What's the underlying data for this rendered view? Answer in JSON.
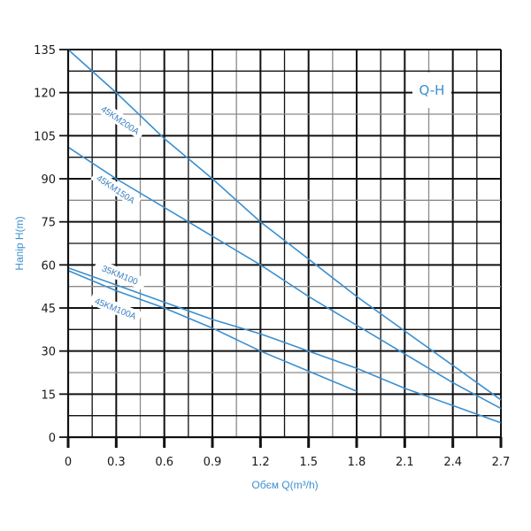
{
  "chart_data": {
    "type": "line",
    "title": "Q-H",
    "xlabel": "Обєм Q(m³/h)",
    "ylabel": "Напір H(m)",
    "xlim": [
      0,
      2.7
    ],
    "ylim": [
      0,
      135
    ],
    "x_ticks": [
      "0",
      "0.3",
      "0.6",
      "0.9",
      "1.2",
      "1.5",
      "1.8",
      "2.1",
      "2.4",
      "2.7"
    ],
    "y_ticks": [
      "0",
      "15",
      "30",
      "45",
      "60",
      "75",
      "90",
      "105",
      "120",
      "135"
    ],
    "grid": true,
    "series": [
      {
        "name": "45KM200A",
        "x": [
          0,
          0.3,
          0.6,
          0.9,
          1.2,
          1.5,
          1.8,
          2.1,
          2.4,
          2.7
        ],
        "values": [
          135,
          120,
          104,
          90,
          75,
          62,
          49,
          37,
          25,
          13
        ]
      },
      {
        "name": "45KM150A",
        "x": [
          0,
          0.3,
          0.6,
          0.9,
          1.2,
          1.5,
          1.8,
          2.1,
          2.4,
          2.7
        ],
        "values": [
          101,
          90,
          80,
          70,
          60,
          49,
          39,
          29,
          19,
          10
        ]
      },
      {
        "name": "35KM100",
        "x": [
          0,
          0.3,
          0.6,
          0.9,
          1.2,
          1.5,
          1.8,
          2.1,
          2.4,
          2.7
        ],
        "values": [
          59,
          53,
          47,
          41,
          36,
          30,
          24,
          17,
          11,
          5
        ]
      },
      {
        "name": "45KM100A",
        "x": [
          0,
          0.3,
          0.6,
          0.9,
          1.2,
          1.5,
          1.8
        ],
        "values": [
          58,
          51,
          45,
          38,
          30,
          23,
          16
        ]
      }
    ],
    "colors": {
      "curve": "#3a8fd0",
      "grid": "#111111",
      "label": "#3a8fd0"
    }
  }
}
